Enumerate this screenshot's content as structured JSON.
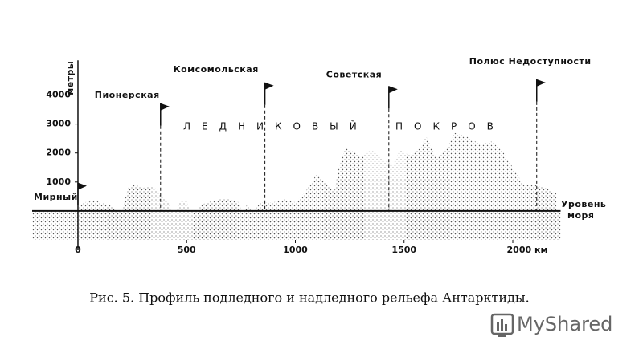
{
  "chart_data": {
    "type": "line",
    "caption": "Рис. 5. Профиль подледного и надледного рельефа Антарктиды.",
    "y_label": "метры",
    "sea_level_label": [
      "Уровень",
      "моря"
    ],
    "ice_label": [
      "ЛЕДНИКОВЫЙ",
      "ПОКРОВ"
    ],
    "xlim": [
      -160,
      2220
    ],
    "ylim": [
      -1000,
      5200
    ],
    "xticks": [
      0,
      500,
      1000,
      1500,
      {
        "value": 2000,
        "label": "2000 км"
      }
    ],
    "yticks": [
      1000,
      2000,
      3000,
      4000
    ],
    "series": [
      {
        "color": "#111111",
        "x": [
          -150,
          -100,
          -50,
          0,
          50,
          100,
          200,
          300,
          400,
          500,
          600,
          700,
          800,
          900,
          1000,
          1100,
          1200,
          1300,
          1400,
          1500,
          1600,
          1700,
          1800,
          1900,
          2000,
          2100,
          2200
        ],
        "values": [
          -500,
          -300,
          -100,
          200,
          800,
          1400,
          2200,
          2700,
          3000,
          3150,
          3300,
          3450,
          3600,
          3700,
          3750,
          3850,
          3900,
          3700,
          3550,
          3500,
          3600,
          3750,
          3900,
          4000,
          3950,
          3800,
          3500
        ]
      },
      {
        "color": "#111111",
        "x": [
          0,
          30,
          80,
          150,
          200,
          230,
          260,
          300,
          350,
          380,
          420,
          440,
          470,
          500,
          520,
          540,
          560,
          600,
          650,
          700,
          740,
          760,
          780,
          800,
          840,
          900,
          950,
          1000,
          1050,
          1100,
          1150,
          1180,
          1200,
          1230,
          1300,
          1350,
          1400,
          1450,
          1480,
          1530,
          1580,
          1600,
          1650,
          1700,
          1730,
          1780,
          1850,
          1900,
          1950,
          2000,
          2050,
          2100,
          2150,
          2200
        ],
        "values": [
          100,
          300,
          350,
          200,
          -100,
          800,
          900,
          800,
          850,
          600,
          300,
          -200,
          300,
          400,
          -200,
          -600,
          200,
          300,
          400,
          400,
          300,
          -200,
          300,
          -100,
          300,
          300,
          400,
          300,
          700,
          1300,
          900,
          700,
          1500,
          2200,
          1900,
          2100,
          1800,
          1600,
          2100,
          1900,
          2200,
          2600,
          1800,
          2200,
          2700,
          2600,
          2300,
          2400,
          2100,
          1500,
          900,
          900,
          800,
          600
        ]
      }
    ],
    "stations": [
      {
        "label": "Мирный",
        "x": 0
      },
      {
        "label": "Пионерская",
        "x": 380
      },
      {
        "label": "Комсомольская",
        "x": 860
      },
      {
        "label": "Советская",
        "x": 1430
      },
      {
        "label": "Полюс Недоступности",
        "x": 2110
      }
    ]
  },
  "watermark": "MyShared"
}
